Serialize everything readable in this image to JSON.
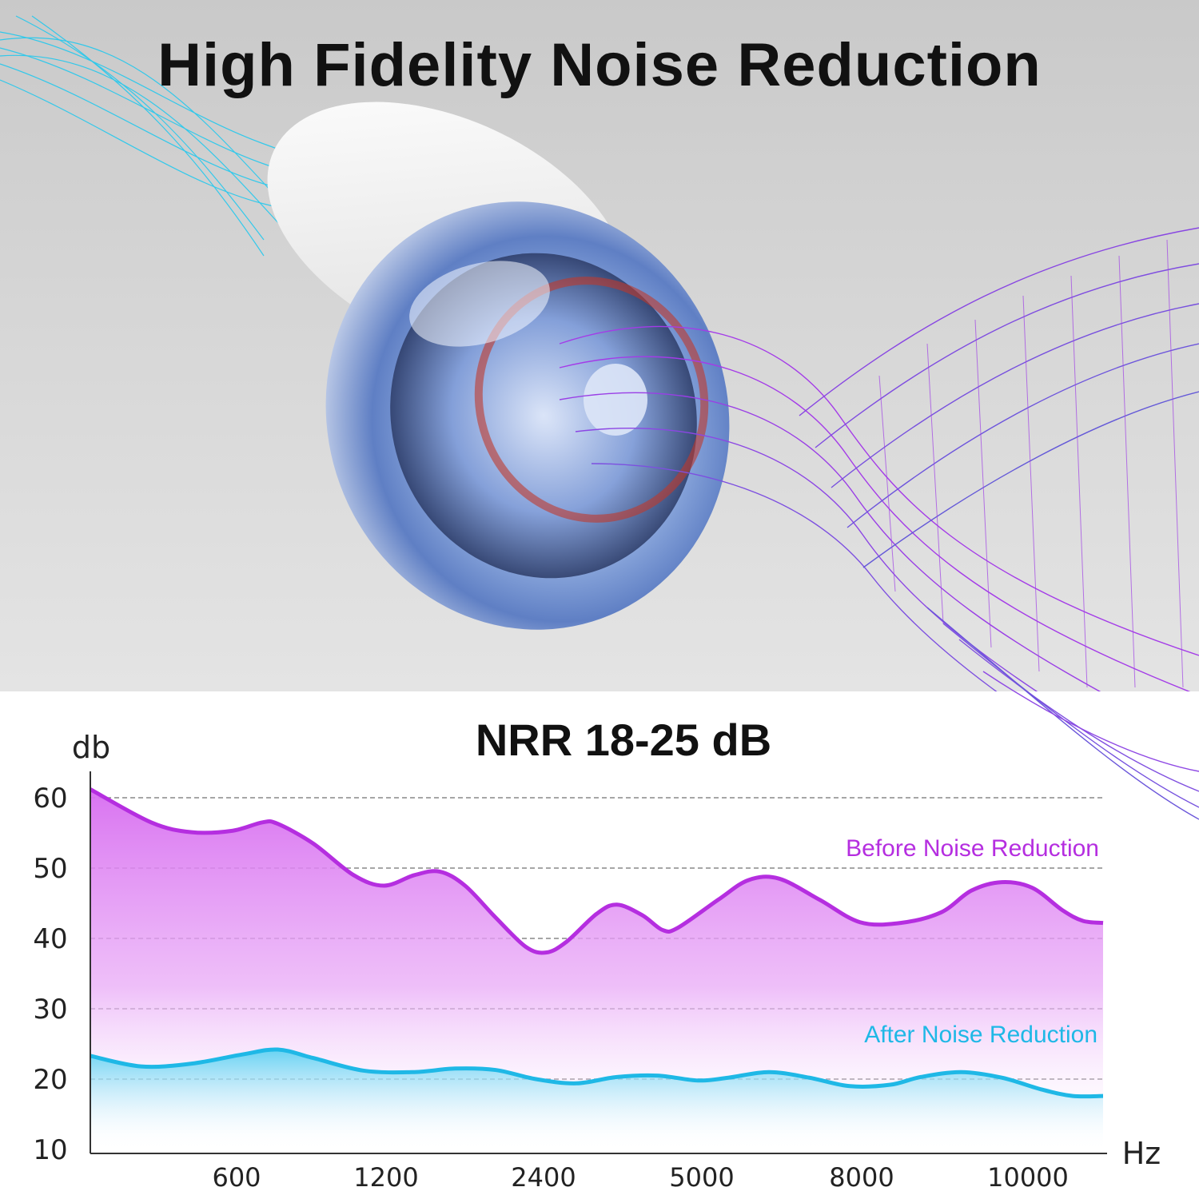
{
  "hero": {
    "title": "High Fidelity Noise Reduction",
    "image": "earplug-with-sound-waves"
  },
  "colors": {
    "before": "#b52ee0",
    "before_fill_top": "#d76cf0",
    "after": "#1fb8e6",
    "after_fill_top": "#5fd2f2",
    "grid": "#888888",
    "axis": "#333333"
  },
  "chart_data": {
    "type": "area",
    "title": "NRR 18-25 dB",
    "ylabel": "db",
    "xlabel": "Hz",
    "ylim": [
      10,
      64
    ],
    "yticks": [
      60,
      50,
      40,
      30,
      20,
      10
    ],
    "xtick_labels": [
      "600",
      "1200",
      "2400",
      "5000",
      "8000",
      "10000"
    ],
    "grid": "dashed horizontal",
    "series": [
      {
        "name": "Before Noise Reduction",
        "points": [
          [
            0,
            61.2
          ],
          [
            0.06,
            56.5
          ],
          [
            0.1,
            55.1
          ],
          [
            0.14,
            55.3
          ],
          [
            0.17,
            56.5
          ],
          [
            0.185,
            56.3
          ],
          [
            0.22,
            53.5
          ],
          [
            0.26,
            49.0
          ],
          [
            0.29,
            47.5
          ],
          [
            0.32,
            49.0
          ],
          [
            0.345,
            49.5
          ],
          [
            0.37,
            47.5
          ],
          [
            0.4,
            43.0
          ],
          [
            0.43,
            38.8
          ],
          [
            0.45,
            38.0
          ],
          [
            0.47,
            39.5
          ],
          [
            0.5,
            43.5
          ],
          [
            0.52,
            44.8
          ],
          [
            0.545,
            43.3
          ],
          [
            0.565,
            41.2
          ],
          [
            0.58,
            41.5
          ],
          [
            0.62,
            45.5
          ],
          [
            0.65,
            48.3
          ],
          [
            0.68,
            48.5
          ],
          [
            0.72,
            45.5
          ],
          [
            0.76,
            42.3
          ],
          [
            0.8,
            42.2
          ],
          [
            0.84,
            43.7
          ],
          [
            0.87,
            46.8
          ],
          [
            0.9,
            48.0
          ],
          [
            0.93,
            47.2
          ],
          [
            0.96,
            44.0
          ],
          [
            0.98,
            42.5
          ],
          [
            1.0,
            42.2
          ]
        ]
      },
      {
        "name": "After Noise Reduction",
        "points": [
          [
            0,
            23.3
          ],
          [
            0.05,
            21.8
          ],
          [
            0.1,
            22.2
          ],
          [
            0.15,
            23.5
          ],
          [
            0.185,
            24.2
          ],
          [
            0.22,
            23.0
          ],
          [
            0.27,
            21.2
          ],
          [
            0.32,
            21.0
          ],
          [
            0.36,
            21.5
          ],
          [
            0.4,
            21.3
          ],
          [
            0.44,
            20.0
          ],
          [
            0.48,
            19.4
          ],
          [
            0.52,
            20.3
          ],
          [
            0.56,
            20.5
          ],
          [
            0.6,
            19.8
          ],
          [
            0.63,
            20.2
          ],
          [
            0.67,
            21.0
          ],
          [
            0.71,
            20.2
          ],
          [
            0.75,
            19.0
          ],
          [
            0.79,
            19.2
          ],
          [
            0.82,
            20.3
          ],
          [
            0.86,
            21.0
          ],
          [
            0.9,
            20.2
          ],
          [
            0.94,
            18.5
          ],
          [
            0.97,
            17.6
          ],
          [
            1.0,
            17.6
          ]
        ]
      }
    ]
  }
}
